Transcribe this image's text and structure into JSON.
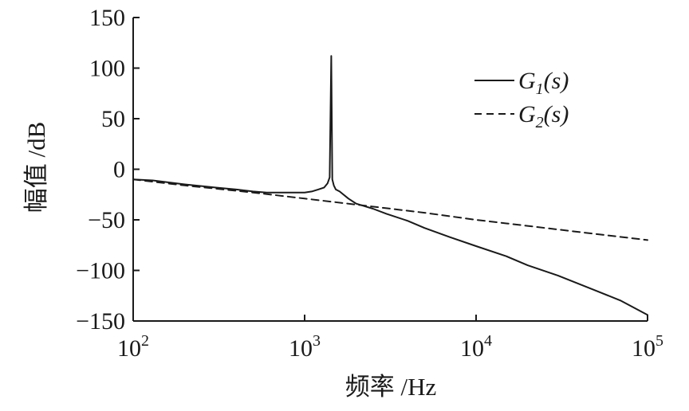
{
  "chart_data": {
    "type": "line",
    "title": "",
    "xlabel": "频率 /Hz",
    "ylabel": "幅值 /dB",
    "xscale": "log",
    "xlim": [
      100,
      100000
    ],
    "ylim": [
      -150,
      150
    ],
    "x_ticks": [
      {
        "value": 100,
        "base": "10",
        "exp": "2"
      },
      {
        "value": 1000,
        "base": "10",
        "exp": "3"
      },
      {
        "value": 10000,
        "base": "10",
        "exp": "4"
      },
      {
        "value": 100000,
        "base": "10",
        "exp": "5"
      }
    ],
    "y_ticks": [
      {
        "value": 150,
        "label": "150"
      },
      {
        "value": 100,
        "label": "100"
      },
      {
        "value": 50,
        "label": "50"
      },
      {
        "value": 0,
        "label": "0"
      },
      {
        "value": -50,
        "label": "−50"
      },
      {
        "value": -100,
        "label": "−100"
      },
      {
        "value": -150,
        "label": "−150"
      }
    ],
    "grid": false,
    "legend_position": "top-right",
    "series": [
      {
        "name": "G1(s)",
        "legend_main": "G",
        "legend_sub": "1",
        "legend_tail": "(s)",
        "style": "solid",
        "color": "#1a1a1a",
        "x": [
          100,
          130,
          200,
          300,
          400,
          500,
          600,
          800,
          1000,
          1100,
          1200,
          1300,
          1360,
          1400,
          1430,
          1450,
          1480,
          1520,
          1600,
          1800,
          2000,
          2500,
          3000,
          4000,
          5000,
          7000,
          10000,
          15000,
          20000,
          30000,
          50000,
          70000,
          100000
        ],
        "y": [
          -10,
          -11,
          -15,
          -18,
          -20,
          -22,
          -23,
          -23,
          -23,
          -22,
          -20,
          -18,
          -14,
          -8,
          112,
          -10,
          -16,
          -20,
          -22,
          -29,
          -34,
          -39,
          -44,
          -51,
          -58,
          -67,
          -76,
          -86,
          -95,
          -105,
          -120,
          -130,
          -144
        ]
      },
      {
        "name": "G2(s)",
        "legend_main": "G",
        "legend_sub": "2",
        "legend_tail": "(s)",
        "style": "dashed",
        "color": "#1a1a1a",
        "x": [
          100,
          200,
          500,
          1000,
          2000,
          5000,
          10000,
          20000,
          50000,
          100000
        ],
        "y": [
          -10,
          -16,
          -23,
          -29,
          -35,
          -43,
          -50,
          -56,
          -64,
          -70
        ]
      }
    ]
  }
}
